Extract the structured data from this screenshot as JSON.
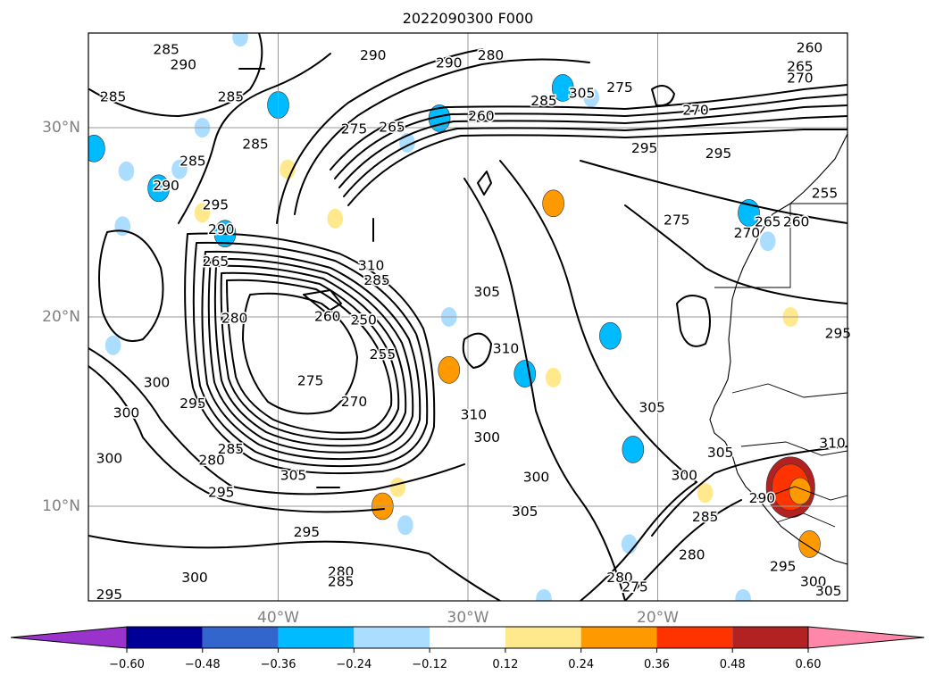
{
  "title": "2022090300 F000",
  "chart_data": {
    "type": "map",
    "projection": "lat-lon",
    "extent": {
      "lon_min": -50,
      "lon_max": -10,
      "lat_min": 5,
      "lat_max": 35
    },
    "gridlines": true,
    "lat_ticks": [
      {
        "value": 10,
        "label": "10°N"
      },
      {
        "value": 20,
        "label": "20°N"
      },
      {
        "value": 30,
        "label": "30°N"
      }
    ],
    "lon_ticks": [
      {
        "value": -40,
        "label": "40°W"
      },
      {
        "value": -30,
        "label": "30°W"
      },
      {
        "value": -20,
        "label": "20°W"
      }
    ],
    "line_contour_labels": [
      {
        "lon": -45.9,
        "lat": 34.1,
        "text": "285"
      },
      {
        "lon": -45.0,
        "lat": 33.3,
        "text": "290"
      },
      {
        "lon": -44.5,
        "lat": 28.2,
        "text": "285"
      },
      {
        "lon": -42.5,
        "lat": 31.6,
        "text": "285"
      },
      {
        "lon": -45.9,
        "lat": 26.9,
        "text": "290"
      },
      {
        "lon": -41.2,
        "lat": 29.1,
        "text": "285"
      },
      {
        "lon": -48.7,
        "lat": 31.6,
        "text": "285"
      },
      {
        "lon": -43.3,
        "lat": 25.9,
        "text": "295"
      },
      {
        "lon": -43.0,
        "lat": 24.6,
        "text": "290"
      },
      {
        "lon": -36.0,
        "lat": 29.9,
        "text": "275"
      },
      {
        "lon": -34.0,
        "lat": 30.0,
        "text": "265"
      },
      {
        "lon": -35.0,
        "lat": 33.8,
        "text": "290"
      },
      {
        "lon": -31.0,
        "lat": 33.4,
        "text": "290"
      },
      {
        "lon": -28.8,
        "lat": 33.8,
        "text": "280"
      },
      {
        "lon": -29.3,
        "lat": 30.6,
        "text": "260"
      },
      {
        "lon": -26.0,
        "lat": 31.4,
        "text": "285"
      },
      {
        "lon": -24.0,
        "lat": 31.8,
        "text": "305"
      },
      {
        "lon": -22.0,
        "lat": 32.1,
        "text": "275"
      },
      {
        "lon": -18.0,
        "lat": 30.9,
        "text": "270"
      },
      {
        "lon": -20.7,
        "lat": 28.9,
        "text": "295"
      },
      {
        "lon": -16.8,
        "lat": 28.6,
        "text": "295"
      },
      {
        "lon": -12.0,
        "lat": 34.2,
        "text": "260"
      },
      {
        "lon": -12.5,
        "lat": 33.2,
        "text": "265"
      },
      {
        "lon": -12.5,
        "lat": 32.6,
        "text": "270"
      },
      {
        "lon": -11.2,
        "lat": 26.5,
        "text": "255"
      },
      {
        "lon": -12.7,
        "lat": 25.0,
        "text": "260"
      },
      {
        "lon": -14.2,
        "lat": 25.0,
        "text": "265"
      },
      {
        "lon": -19.0,
        "lat": 25.1,
        "text": "275"
      },
      {
        "lon": -15.3,
        "lat": 24.4,
        "text": "270"
      },
      {
        "lon": -43.3,
        "lat": 22.9,
        "text": "265"
      },
      {
        "lon": -35.1,
        "lat": 22.7,
        "text": "310"
      },
      {
        "lon": -34.8,
        "lat": 21.9,
        "text": "285"
      },
      {
        "lon": -37.4,
        "lat": 20.0,
        "text": "260"
      },
      {
        "lon": -35.5,
        "lat": 19.8,
        "text": "250"
      },
      {
        "lon": -34.5,
        "lat": 18.0,
        "text": "255"
      },
      {
        "lon": -42.3,
        "lat": 19.9,
        "text": "280"
      },
      {
        "lon": -38.3,
        "lat": 16.6,
        "text": "275"
      },
      {
        "lon": -36.0,
        "lat": 15.5,
        "text": "270"
      },
      {
        "lon": -29.0,
        "lat": 21.3,
        "text": "305"
      },
      {
        "lon": -28.0,
        "lat": 18.3,
        "text": "310"
      },
      {
        "lon": -29.7,
        "lat": 14.8,
        "text": "310"
      },
      {
        "lon": -29.0,
        "lat": 13.6,
        "text": "300"
      },
      {
        "lon": -20.3,
        "lat": 15.2,
        "text": "305"
      },
      {
        "lon": -46.4,
        "lat": 16.5,
        "text": "300"
      },
      {
        "lon": -44.5,
        "lat": 15.4,
        "text": "295"
      },
      {
        "lon": -48.0,
        "lat": 14.9,
        "text": "300"
      },
      {
        "lon": -48.9,
        "lat": 12.5,
        "text": "300"
      },
      {
        "lon": -43.5,
        "lat": 12.4,
        "text": "280"
      },
      {
        "lon": -42.5,
        "lat": 13.0,
        "text": "285"
      },
      {
        "lon": -39.2,
        "lat": 11.6,
        "text": "305"
      },
      {
        "lon": -43.0,
        "lat": 10.7,
        "text": "295"
      },
      {
        "lon": -38.5,
        "lat": 8.6,
        "text": "295"
      },
      {
        "lon": -36.7,
        "lat": 6.5,
        "text": "280"
      },
      {
        "lon": -36.7,
        "lat": 6.0,
        "text": "285"
      },
      {
        "lon": -48.9,
        "lat": 5.3,
        "text": "295"
      },
      {
        "lon": -44.4,
        "lat": 6.2,
        "text": "300"
      },
      {
        "lon": -26.4,
        "lat": 11.5,
        "text": "300"
      },
      {
        "lon": -27.0,
        "lat": 9.7,
        "text": "305"
      },
      {
        "lon": -18.6,
        "lat": 11.6,
        "text": "300"
      },
      {
        "lon": -16.7,
        "lat": 12.8,
        "text": "305"
      },
      {
        "lon": -14.5,
        "lat": 10.4,
        "text": "290"
      },
      {
        "lon": -17.5,
        "lat": 9.4,
        "text": "285"
      },
      {
        "lon": -18.2,
        "lat": 7.4,
        "text": "280"
      },
      {
        "lon": -13.4,
        "lat": 6.8,
        "text": "295"
      },
      {
        "lon": -11.8,
        "lat": 6.0,
        "text": "300"
      },
      {
        "lon": -11.0,
        "lat": 5.5,
        "text": "305"
      },
      {
        "lon": -22.0,
        "lat": 6.2,
        "text": "280"
      },
      {
        "lon": -21.2,
        "lat": 5.7,
        "text": "275"
      },
      {
        "lon": -10.5,
        "lat": 19.1,
        "text": "295"
      },
      {
        "lon": -10.8,
        "lat": 13.3,
        "text": "310"
      }
    ],
    "filled_anomalies": [
      {
        "lon": -49.7,
        "lat": 28.9,
        "value": -0.3
      },
      {
        "lon": -48.0,
        "lat": 27.7,
        "value": -0.15
      },
      {
        "lon": -46.3,
        "lat": 26.8,
        "value": -0.3
      },
      {
        "lon": -45.2,
        "lat": 27.8,
        "value": -0.15
      },
      {
        "lon": -48.2,
        "lat": 24.8,
        "value": -0.15
      },
      {
        "lon": -42.8,
        "lat": 24.4,
        "value": -0.3
      },
      {
        "lon": -44.0,
        "lat": 25.5,
        "value": 0.2
      },
      {
        "lon": -42.0,
        "lat": 34.8,
        "value": -0.15
      },
      {
        "lon": -40.0,
        "lat": 31.2,
        "value": -0.3
      },
      {
        "lon": -44.0,
        "lat": 30.0,
        "value": -0.15
      },
      {
        "lon": -39.5,
        "lat": 27.8,
        "value": 0.2
      },
      {
        "lon": -37.0,
        "lat": 25.2,
        "value": 0.2
      },
      {
        "lon": -33.2,
        "lat": 29.2,
        "value": -0.15
      },
      {
        "lon": -31.5,
        "lat": 30.5,
        "value": -0.3
      },
      {
        "lon": -25.0,
        "lat": 32.1,
        "value": -0.3
      },
      {
        "lon": -23.5,
        "lat": 31.6,
        "value": -0.15
      },
      {
        "lon": -25.5,
        "lat": 26.0,
        "value": 0.3
      },
      {
        "lon": -15.2,
        "lat": 25.5,
        "value": -0.3
      },
      {
        "lon": -14.2,
        "lat": 24.0,
        "value": -0.15
      },
      {
        "lon": -48.7,
        "lat": 18.5,
        "value": -0.15
      },
      {
        "lon": -31.0,
        "lat": 17.2,
        "value": 0.3
      },
      {
        "lon": -31.0,
        "lat": 20.0,
        "value": -0.15
      },
      {
        "lon": -27.0,
        "lat": 17.0,
        "value": -0.3
      },
      {
        "lon": -22.5,
        "lat": 19.0,
        "value": -0.3
      },
      {
        "lon": -25.5,
        "lat": 16.8,
        "value": 0.2
      },
      {
        "lon": -13.0,
        "lat": 20.0,
        "value": 0.2
      },
      {
        "lon": -21.3,
        "lat": 13.0,
        "value": -0.3
      },
      {
        "lon": -33.7,
        "lat": 11.0,
        "value": 0.2
      },
      {
        "lon": -34.5,
        "lat": 10.0,
        "value": 0.3
      },
      {
        "lon": -33.3,
        "lat": 9.0,
        "value": -0.15
      },
      {
        "lon": -21.5,
        "lat": 8.0,
        "value": -0.15
      },
      {
        "lon": -17.5,
        "lat": 10.7,
        "value": 0.2
      },
      {
        "lon": -13.0,
        "lat": 11.0,
        "value": 0.52
      },
      {
        "lon": -13.0,
        "lat": 11.0,
        "value": 0.4
      },
      {
        "lon": -12.5,
        "lat": 10.8,
        "value": 0.3
      },
      {
        "lon": -12.0,
        "lat": 8.0,
        "value": 0.3
      },
      {
        "lon": -26.0,
        "lat": 5.1,
        "value": -0.15
      },
      {
        "lon": -15.5,
        "lat": 5.1,
        "value": -0.15
      }
    ],
    "colorbar": {
      "levels": [
        -0.72,
        -0.6,
        -0.48,
        -0.36,
        -0.24,
        -0.12,
        0.12,
        0.24,
        0.36,
        0.48,
        0.6,
        0.72
      ],
      "colors": [
        "#9933cc",
        "#000099",
        "#3366cc",
        "#00bbff",
        "#aaddff",
        "#ffffff",
        "#ffe98c",
        "#ff9900",
        "#ff3300",
        "#b22222",
        "#ff88aa"
      ],
      "tick_labels": [
        "−0.60",
        "−0.48",
        "−0.36",
        "−0.24",
        "−0.12",
        "0.12",
        "0.24",
        "0.36",
        "0.48",
        "0.60"
      ],
      "extend": "both"
    }
  }
}
